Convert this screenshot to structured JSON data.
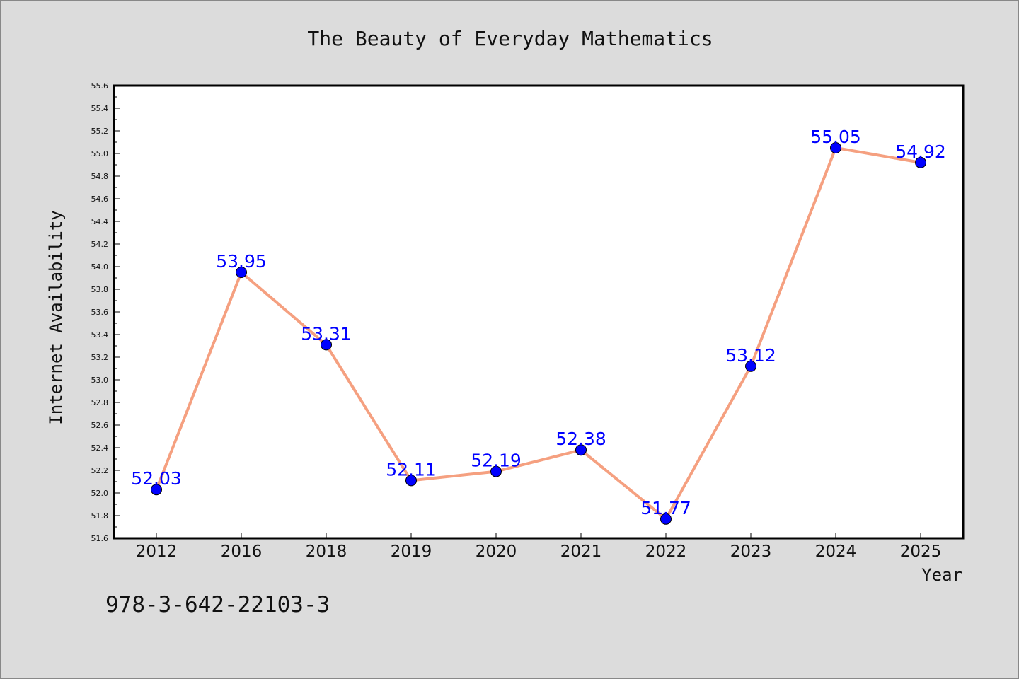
{
  "annotation_text": "978-3-642-22103-3",
  "colors": {
    "background": "#dcdcdc",
    "plot_background": "#ffffff",
    "line": "#f5a080",
    "marker": "#0000ff",
    "data_label": "#0000ff"
  },
  "chart_data": {
    "type": "line",
    "title": "The Beauty of Everyday Mathematics",
    "xlabel": "Year",
    "ylabel": "Internet Availability",
    "categories": [
      "2012",
      "2016",
      "2018",
      "2019",
      "2020",
      "2021",
      "2022",
      "2023",
      "2024",
      "2025"
    ],
    "series": [
      {
        "values": [
          52.03,
          53.95,
          53.31,
          52.11,
          52.19,
          52.38,
          51.77,
          53.12,
          55.05,
          54.92
        ],
        "data_labels": [
          "52.03",
          "53.95",
          "53.31",
          "52.11",
          "52.19",
          "52.38",
          "51.77",
          "53.12",
          "55.05",
          "54.92"
        ]
      }
    ],
    "ylim": [
      51.6,
      55.6
    ],
    "y_ticks": [
      "51.6",
      "51.8",
      "52.0",
      "52.2",
      "52.4",
      "52.6",
      "52.8",
      "53.0",
      "53.2",
      "53.4",
      "53.6",
      "53.8",
      "54.0",
      "54.2",
      "54.4",
      "54.6",
      "54.8",
      "55.0",
      "55.2",
      "55.4",
      "55.6"
    ],
    "grid": false,
    "legend": "none"
  }
}
